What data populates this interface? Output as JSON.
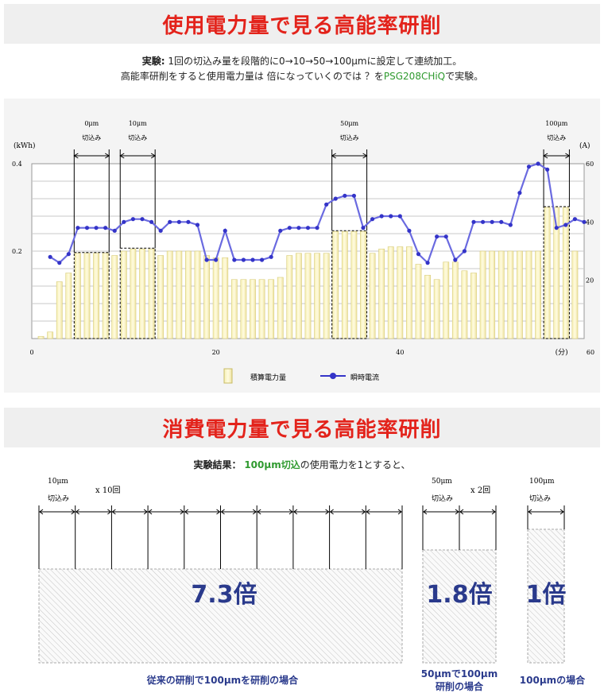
{
  "top_banner": {
    "title": "使用電力量で見る高能率研削"
  },
  "intro": {
    "label": "実験:",
    "line1": "1回の切込み量を段階的に0→10→50→100μmに設定して連続加工。",
    "line2_pre": "高能率研削をすると使用電力量は 倍になっていくのでは ？を",
    "product": "PSG208CHiQ",
    "line2_post": "で実験。"
  },
  "chart_data": {
    "type": "bar+line",
    "xlabel": "(分)",
    "ylabel_left": "(kWh)",
    "ylabel_right": "(A)",
    "xlim": [
      0,
      60
    ],
    "ylim_left": [
      0,
      0.4
    ],
    "ylim_right": [
      0,
      60
    ],
    "x_ticks": [
      0,
      20,
      40,
      60
    ],
    "y_left_ticks": [
      0.2,
      0.4
    ],
    "y_right_ticks": [
      20,
      40,
      60
    ],
    "grid": true,
    "legend_position": "bottom",
    "series": [
      {
        "name": "積算電力量",
        "axis": "left",
        "style": "bar",
        "x": [
          1,
          2,
          3,
          4,
          5,
          6,
          7,
          8,
          9,
          10,
          11,
          12,
          13,
          14,
          15,
          16,
          17,
          18,
          19,
          20,
          21,
          22,
          23,
          24,
          25,
          26,
          27,
          28,
          29,
          30,
          31,
          32,
          33,
          34,
          35,
          36,
          37,
          38,
          39,
          40,
          41,
          42,
          43,
          44,
          45,
          46,
          47,
          48,
          49,
          50,
          51,
          52,
          53,
          54,
          55,
          56,
          57,
          58,
          59
        ],
        "values": [
          0.005,
          0.015,
          0.13,
          0.15,
          0.195,
          0.195,
          0.195,
          0.195,
          0.19,
          0.2,
          0.205,
          0.205,
          0.205,
          0.19,
          0.2,
          0.2,
          0.2,
          0.2,
          0.19,
          0.185,
          0.185,
          0.135,
          0.135,
          0.135,
          0.135,
          0.135,
          0.14,
          0.19,
          0.195,
          0.195,
          0.195,
          0.195,
          0.245,
          0.245,
          0.245,
          0.245,
          0.195,
          0.205,
          0.21,
          0.21,
          0.21,
          0.17,
          0.145,
          0.135,
          0.175,
          0.175,
          0.155,
          0.15,
          0.2,
          0.2,
          0.2,
          0.2,
          0.2,
          0.2,
          0.2,
          0.3,
          0.3,
          0.3,
          0.2
        ]
      },
      {
        "name": "瞬時電流",
        "axis": "right",
        "style": "line",
        "x": [
          2,
          3,
          4,
          5,
          6,
          7,
          8,
          9,
          10,
          11,
          12,
          13,
          14,
          15,
          16,
          17,
          18,
          19,
          20,
          21,
          22,
          23,
          24,
          25,
          26,
          27,
          28,
          29,
          30,
          31,
          32,
          33,
          34,
          35,
          36,
          37,
          38,
          39,
          40,
          41,
          42,
          43,
          44,
          45,
          46,
          47,
          48,
          49,
          50,
          51,
          52,
          53,
          54,
          55,
          56,
          57,
          58,
          59,
          60
        ],
        "values": [
          28,
          26,
          29,
          38,
          38,
          38,
          38,
          37,
          40,
          41,
          41,
          40,
          37,
          40,
          40,
          40,
          39,
          27,
          27,
          37,
          27,
          27,
          27,
          27,
          28,
          37,
          38,
          38,
          38,
          38,
          46,
          48,
          49,
          49,
          38,
          41,
          42,
          42,
          42,
          37,
          29,
          26,
          35,
          35,
          27,
          30,
          40,
          40,
          40,
          40,
          39,
          50,
          59,
          60,
          58,
          38,
          39,
          41,
          40
        ]
      }
    ],
    "annotations": [
      {
        "depth": "0μm",
        "label": "切込み"
      },
      {
        "depth": "10μm",
        "label": "切込み"
      },
      {
        "depth": "50μm",
        "label": "切込み"
      },
      {
        "depth": "100μm",
        "label": "切込み"
      }
    ]
  },
  "bottom_banner": {
    "title": "消費電力量で見る高能率研削"
  },
  "result": {
    "label": "実験結果：",
    "highlight": "100μm切込",
    "rest": "の使用電力を1とすると、"
  },
  "comparison": [
    {
      "depth": "10μm",
      "cut_label": "切込み",
      "repeat": "x 10回",
      "ratio": "7.3倍",
      "caption": "従来の研削で100μmを研削の場合"
    },
    {
      "depth": "50μm",
      "cut_label": "切込み",
      "repeat": "x 2回",
      "ratio": "1.8倍",
      "caption_line1": "50μmで100μm",
      "caption_line2": "研削の場合"
    },
    {
      "depth": "100μm",
      "cut_label": "切込み",
      "ratio": "1倍",
      "caption": "100μmの場合"
    }
  ]
}
